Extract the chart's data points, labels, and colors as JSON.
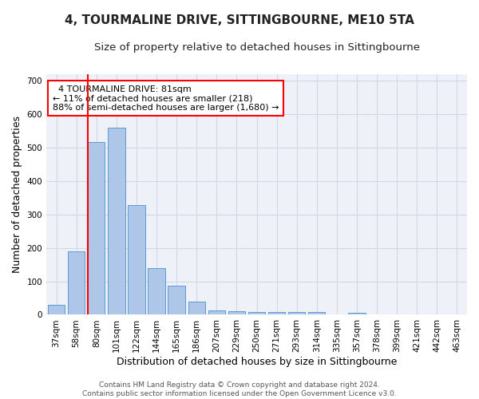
{
  "title": "4, TOURMALINE DRIVE, SITTINGBOURNE, ME10 5TA",
  "subtitle": "Size of property relative to detached houses in Sittingbourne",
  "xlabel": "Distribution of detached houses by size in Sittingbourne",
  "ylabel": "Number of detached properties",
  "footer_line1": "Contains HM Land Registry data © Crown copyright and database right 2024.",
  "footer_line2": "Contains public sector information licensed under the Open Government Licence v3.0.",
  "categories": [
    "37sqm",
    "58sqm",
    "80sqm",
    "101sqm",
    "122sqm",
    "144sqm",
    "165sqm",
    "186sqm",
    "207sqm",
    "229sqm",
    "250sqm",
    "271sqm",
    "293sqm",
    "314sqm",
    "335sqm",
    "357sqm",
    "378sqm",
    "399sqm",
    "421sqm",
    "442sqm",
    "463sqm"
  ],
  "values": [
    30,
    190,
    518,
    560,
    328,
    140,
    86,
    40,
    13,
    10,
    8,
    8,
    8,
    8,
    0,
    6,
    0,
    0,
    0,
    0,
    0
  ],
  "bar_color": "#aec6e8",
  "bar_edge_color": "#5b9bd5",
  "grid_color": "#d0d8e4",
  "background_color": "#eef2f8",
  "vline_color": "red",
  "vline_index": 2,
  "ylim": [
    0,
    720
  ],
  "yticks": [
    0,
    100,
    200,
    300,
    400,
    500,
    600,
    700
  ],
  "title_fontsize": 11,
  "subtitle_fontsize": 9.5,
  "xlabel_fontsize": 9,
  "ylabel_fontsize": 9,
  "tick_fontsize": 7.5,
  "annotation_fontsize": 8,
  "footer_fontsize": 6.5
}
